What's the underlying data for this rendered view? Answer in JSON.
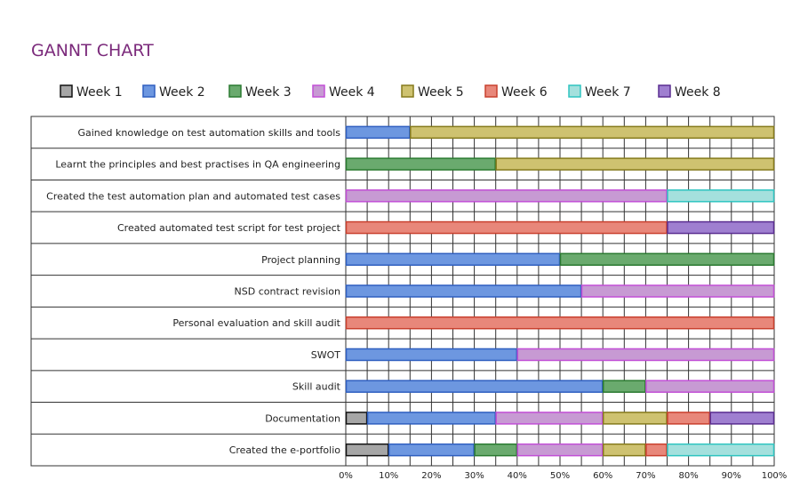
{
  "chart_data": {
    "type": "bar",
    "orientation": "horizontal-stacked",
    "title": "GANNT CHART",
    "title_color": "#7b2a7b",
    "legend": [
      {
        "name": "Week 1",
        "fill": "#a6a6a6",
        "stroke": "#111111"
      },
      {
        "name": "Week 2",
        "fill": "#6d97e0",
        "stroke": "#2f5fc0"
      },
      {
        "name": "Week 3",
        "fill": "#6aaa6e",
        "stroke": "#2a7a30"
      },
      {
        "name": "Week 4",
        "fill": "#c79ad3",
        "stroke": "#c24fd6"
      },
      {
        "name": "Week 5",
        "fill": "#cec270",
        "stroke": "#857a1c"
      },
      {
        "name": "Week 6",
        "fill": "#e8877a",
        "stroke": "#c9402e"
      },
      {
        "name": "Week 7",
        "fill": "#a4e0dd",
        "stroke": "#2ec4c0"
      },
      {
        "name": "Week 8",
        "fill": "#9f7fd0",
        "stroke": "#5a2d91"
      }
    ],
    "x_ticks": [
      "0%",
      "10%",
      "20%",
      "30%",
      "40%",
      "50%",
      "60%",
      "70%",
      "80%",
      "90%",
      "100%"
    ],
    "xlim": [
      0,
      100
    ],
    "tasks": [
      {
        "label": "Gained knowledge on test automation skills and tools",
        "segments": [
          {
            "week": 2,
            "start": 0,
            "end": 15
          },
          {
            "week": 5,
            "start": 15,
            "end": 100
          }
        ]
      },
      {
        "label": "Learnt the principles and best practises in QA engineering",
        "segments": [
          {
            "week": 3,
            "start": 0,
            "end": 35
          },
          {
            "week": 5,
            "start": 35,
            "end": 100
          }
        ]
      },
      {
        "label": "Created the test automation plan and automated test cases",
        "segments": [
          {
            "week": 4,
            "start": 0,
            "end": 75
          },
          {
            "week": 7,
            "start": 75,
            "end": 100
          }
        ]
      },
      {
        "label": "Created automated test script for test project",
        "segments": [
          {
            "week": 6,
            "start": 0,
            "end": 75
          },
          {
            "week": 8,
            "start": 75,
            "end": 100
          }
        ]
      },
      {
        "label": "Project planning",
        "segments": [
          {
            "week": 2,
            "start": 0,
            "end": 50
          },
          {
            "week": 3,
            "start": 50,
            "end": 100
          }
        ]
      },
      {
        "label": "NSD contract revision",
        "segments": [
          {
            "week": 2,
            "start": 0,
            "end": 55
          },
          {
            "week": 4,
            "start": 55,
            "end": 100
          }
        ]
      },
      {
        "label": "Personal evaluation and skill audit",
        "segments": [
          {
            "week": 6,
            "start": 0,
            "end": 100
          }
        ]
      },
      {
        "label": "SWOT",
        "segments": [
          {
            "week": 2,
            "start": 0,
            "end": 40
          },
          {
            "week": 4,
            "start": 40,
            "end": 100
          }
        ]
      },
      {
        "label": "Skill audit",
        "segments": [
          {
            "week": 2,
            "start": 0,
            "end": 60
          },
          {
            "week": 3,
            "start": 60,
            "end": 70
          },
          {
            "week": 4,
            "start": 70,
            "end": 100
          }
        ]
      },
      {
        "label": "Documentation",
        "segments": [
          {
            "week": 1,
            "start": 0,
            "end": 5
          },
          {
            "week": 2,
            "start": 5,
            "end": 35
          },
          {
            "week": 4,
            "start": 35,
            "end": 60
          },
          {
            "week": 5,
            "start": 60,
            "end": 75
          },
          {
            "week": 6,
            "start": 75,
            "end": 85
          },
          {
            "week": 8,
            "start": 85,
            "end": 100
          }
        ]
      },
      {
        "label": "Created the e-portfolio",
        "segments": [
          {
            "week": 1,
            "start": 0,
            "end": 10
          },
          {
            "week": 2,
            "start": 10,
            "end": 30
          },
          {
            "week": 3,
            "start": 30,
            "end": 40
          },
          {
            "week": 4,
            "start": 40,
            "end": 60
          },
          {
            "week": 5,
            "start": 60,
            "end": 70
          },
          {
            "week": 6,
            "start": 70,
            "end": 75
          },
          {
            "week": 7,
            "start": 75,
            "end": 100
          }
        ]
      }
    ],
    "grid": true
  }
}
